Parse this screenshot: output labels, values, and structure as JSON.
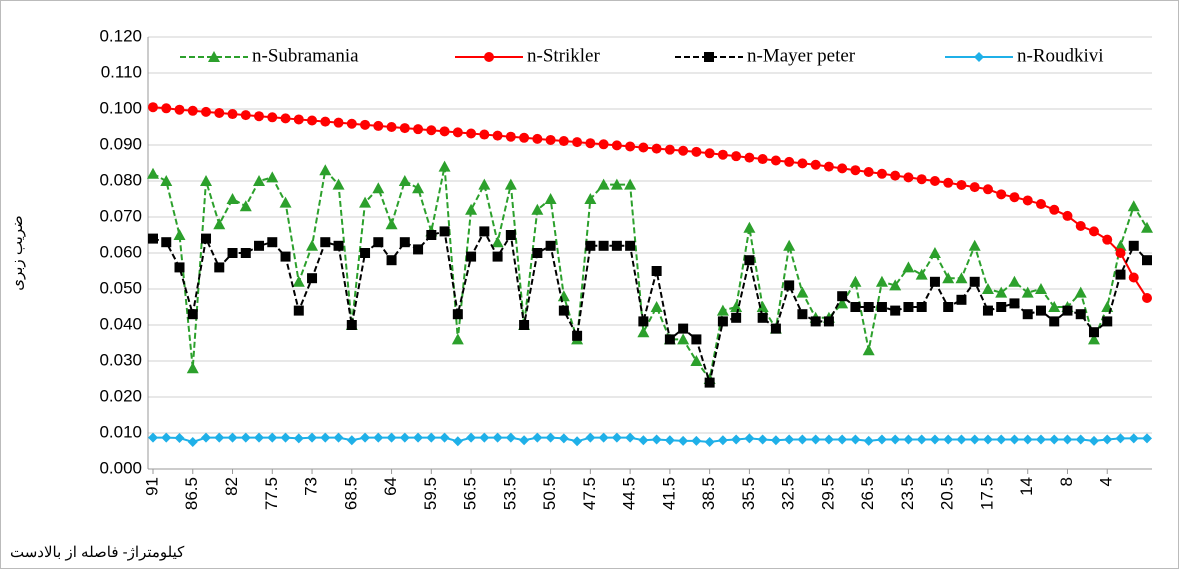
{
  "chart_data": {
    "type": "line",
    "ylabel": "ضریب زبری",
    "xlabel": "کیلومتراژ- فاصله از بالادست",
    "categories": [
      "91",
      null,
      null,
      "86.5",
      null,
      null,
      "82",
      null,
      null,
      "77.5",
      null,
      null,
      "73",
      null,
      null,
      "68.5",
      null,
      null,
      "64",
      null,
      null,
      "59.5",
      null,
      null,
      "56.5",
      null,
      null,
      "53.5",
      null,
      null,
      "50.5",
      null,
      null,
      "47.5",
      null,
      null,
      "44.5",
      null,
      null,
      "41.5",
      null,
      null,
      "38.5",
      null,
      null,
      "35.5",
      null,
      null,
      "32.5",
      null,
      null,
      "29.5",
      null,
      null,
      "26.5",
      null,
      null,
      "23.5",
      null,
      null,
      "20.5",
      null,
      null,
      "17.5",
      null,
      null,
      "14",
      null,
      null,
      "8",
      null,
      null,
      "4",
      null,
      null,
      null
    ],
    "ylim": [
      0,
      0.12
    ],
    "yticks": [
      {
        "value": 0,
        "label": "0.000"
      },
      {
        "value": 0.01,
        "label": "0.010"
      },
      {
        "value": 0.02,
        "label": "0.020"
      },
      {
        "value": 0.03,
        "label": "0.030"
      },
      {
        "value": 0.04,
        "label": "0.040"
      },
      {
        "value": 0.05,
        "label": "0.050"
      },
      {
        "value": 0.06,
        "label": "0.060"
      },
      {
        "value": 0.07,
        "label": "0.070"
      },
      {
        "value": 0.08,
        "label": "0.080"
      },
      {
        "value": 0.09,
        "label": "0.090"
      },
      {
        "value": 0.1,
        "label": "0.100"
      },
      {
        "value": 0.11,
        "label": "0.110"
      },
      {
        "value": 0.12,
        "label": "0.120"
      }
    ],
    "grid": true,
    "legend": "top",
    "series": [
      {
        "name": "n-Subramania",
        "color": "#2ca02c",
        "marker": "triangle",
        "dashed": true,
        "values": [
          0.082,
          0.08,
          0.065,
          0.028,
          0.08,
          0.068,
          0.075,
          0.073,
          0.08,
          0.081,
          0.074,
          0.052,
          0.062,
          0.083,
          0.079,
          0.04,
          0.074,
          0.078,
          0.068,
          0.08,
          0.078,
          0.066,
          0.084,
          0.036,
          0.072,
          0.079,
          0.063,
          0.079,
          0.04,
          0.072,
          0.075,
          0.048,
          0.036,
          0.075,
          0.079,
          0.079,
          0.079,
          0.038,
          0.045,
          0.036,
          0.036,
          0.03,
          0.025,
          0.044,
          0.045,
          0.067,
          0.045,
          0.039,
          0.062,
          0.049,
          0.042,
          0.042,
          0.046,
          0.052,
          0.033,
          0.052,
          0.051,
          0.056,
          0.054,
          0.06,
          0.053,
          0.053,
          0.062,
          0.05,
          0.049,
          0.052,
          0.049,
          0.05,
          0.045,
          0.045,
          0.049,
          0.036,
          0.045,
          0.062,
          0.073,
          0.067
        ]
      },
      {
        "name": "n-Strikler",
        "color": "#ff0000",
        "marker": "circle",
        "dashed": false,
        "values": [
          0.1005,
          0.1002,
          0.0998,
          0.0995,
          0.0992,
          0.0989,
          0.0986,
          0.0983,
          0.098,
          0.0977,
          0.0974,
          0.0971,
          0.0968,
          0.0965,
          0.0962,
          0.0959,
          0.0956,
          0.0953,
          0.095,
          0.0947,
          0.0944,
          0.0941,
          0.0938,
          0.0935,
          0.0932,
          0.0929,
          0.0926,
          0.0923,
          0.092,
          0.0917,
          0.0914,
          0.0911,
          0.0908,
          0.0905,
          0.0902,
          0.0899,
          0.0896,
          0.0893,
          0.089,
          0.0887,
          0.0884,
          0.0881,
          0.0877,
          0.0873,
          0.0869,
          0.0865,
          0.0861,
          0.0857,
          0.0853,
          0.0849,
          0.0845,
          0.084,
          0.0835,
          0.083,
          0.0825,
          0.082,
          0.0815,
          0.081,
          0.0805,
          0.08,
          0.0795,
          0.0789,
          0.0783,
          0.0777,
          0.0763,
          0.0755,
          0.0746,
          0.0736,
          0.072,
          0.0703,
          0.0675,
          0.066,
          0.0637,
          0.06,
          0.0532,
          0.0475
        ]
      },
      {
        "name": "n-Mayer peter",
        "color": "#000000",
        "marker": "square",
        "dashed": true,
        "values": [
          0.064,
          0.063,
          0.056,
          0.043,
          0.064,
          0.056,
          0.06,
          0.06,
          0.062,
          0.063,
          0.059,
          0.044,
          0.053,
          0.063,
          0.062,
          0.04,
          0.06,
          0.063,
          0.058,
          0.063,
          0.061,
          0.065,
          0.066,
          0.043,
          0.059,
          0.066,
          0.059,
          0.065,
          0.04,
          0.06,
          0.062,
          0.044,
          0.037,
          0.062,
          0.062,
          0.062,
          0.062,
          0.041,
          0.055,
          0.036,
          0.039,
          0.036,
          0.024,
          0.041,
          0.042,
          0.058,
          0.042,
          0.039,
          0.051,
          0.043,
          0.041,
          0.041,
          0.048,
          0.045,
          0.045,
          0.045,
          0.044,
          0.045,
          0.045,
          0.052,
          0.045,
          0.047,
          0.052,
          0.044,
          0.045,
          0.046,
          0.043,
          0.044,
          0.041,
          0.044,
          0.043,
          0.038,
          0.041,
          0.054,
          0.062,
          0.058
        ]
      },
      {
        "name": "n-Roudkivi",
        "color": "#1fb0e8",
        "marker": "diamond",
        "dashed": false,
        "values": [
          0.0087,
          0.0087,
          0.0086,
          0.0075,
          0.0087,
          0.0087,
          0.0087,
          0.0087,
          0.0087,
          0.0087,
          0.0087,
          0.0085,
          0.0087,
          0.0087,
          0.0087,
          0.008,
          0.0087,
          0.0087,
          0.0087,
          0.0087,
          0.0087,
          0.0087,
          0.0087,
          0.0077,
          0.0087,
          0.0087,
          0.0087,
          0.0087,
          0.008,
          0.0087,
          0.0087,
          0.0085,
          0.0077,
          0.0087,
          0.0087,
          0.0087,
          0.0087,
          0.008,
          0.0082,
          0.008,
          0.0078,
          0.0078,
          0.0075,
          0.008,
          0.0082,
          0.0085,
          0.0082,
          0.008,
          0.0082,
          0.0082,
          0.0082,
          0.0082,
          0.0082,
          0.0082,
          0.0078,
          0.0082,
          0.0082,
          0.0082,
          0.0082,
          0.0082,
          0.0082,
          0.0082,
          0.0082,
          0.0082,
          0.0082,
          0.0082,
          0.0082,
          0.0082,
          0.0082,
          0.0082,
          0.0082,
          0.0078,
          0.0082,
          0.0085,
          0.0085,
          0.0085
        ]
      }
    ]
  }
}
